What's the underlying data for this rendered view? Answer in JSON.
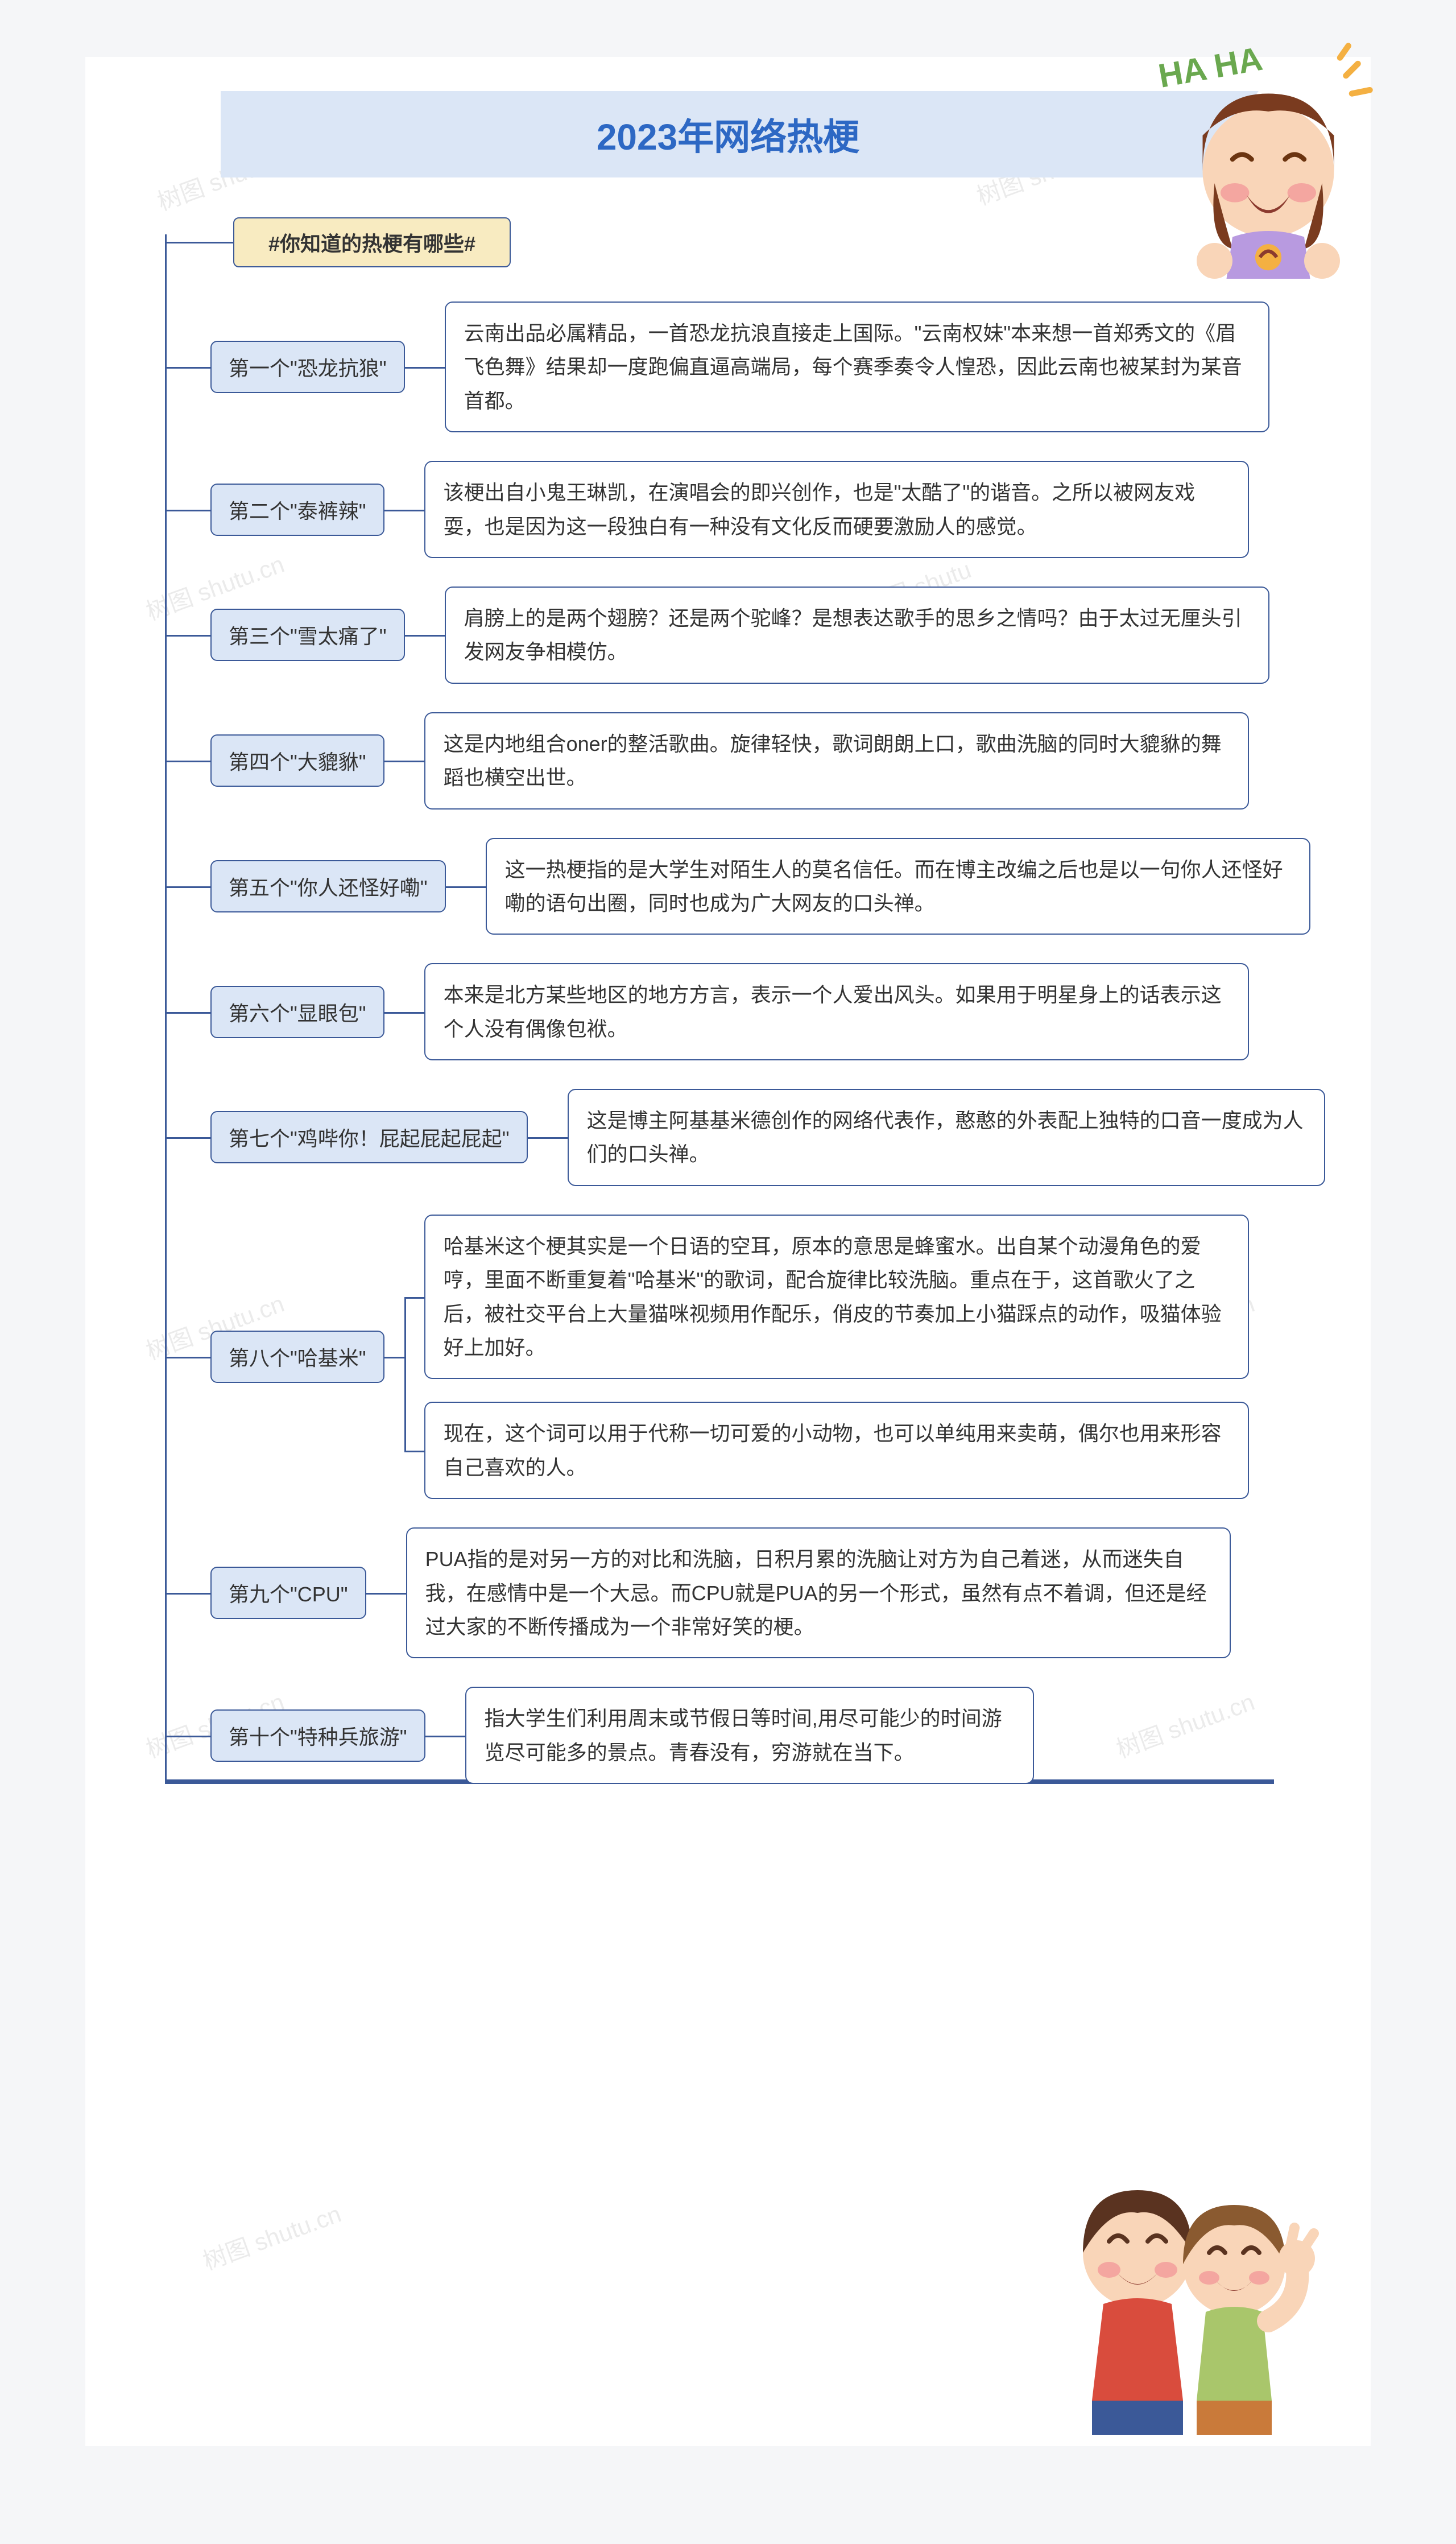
{
  "title": "2023年网络热梗",
  "subtitle": "#你知道的热梗有哪些#",
  "watermarks": [
    "树图 shutu.cn",
    "树图 shutu",
    "树图 shutu.cn",
    "树图 shutu",
    "树图 shutu.cn",
    "树图 shutu.cn",
    "树图 shutu.cn",
    "树图 shutu.cn",
    "树图 shutu.cn",
    "树图 shutu.cn"
  ],
  "colors": {
    "title_bg": "#dbe6f6",
    "title_text": "#2d68c4",
    "subtitle_bg": "#f8ebc1",
    "border": "#3b5998",
    "label_bg": "#dbe6f6",
    "desc_bg": "#ffffff",
    "page_bg": "#f5f6f8",
    "canvas_bg": "#ffffff",
    "watermark": "#d8d8d8"
  },
  "typography": {
    "title_fontsize": 64,
    "subtitle_fontsize": 36,
    "label_fontsize": 36,
    "desc_fontsize": 36,
    "desc_lineheight": 1.65
  },
  "items": [
    {
      "label": "第一个\"恐龙抗狼\"",
      "desc": [
        "云南出品必属精品，一首恐龙抗浪直接走上国际。\"云南权妹\"本来想一首郑秀文的《眉飞色舞》结果却一度跑偏直逼高端局，每个赛季奏令人惶恐，因此云南也被某封为某音首都。"
      ]
    },
    {
      "label": "第二个\"泰裤辣\"",
      "desc": [
        "该梗出自小鬼王琳凯，在演唱会的即兴创作，也是\"太酷了\"的谐音。之所以被网友戏耍，也是因为这一段独白有一种没有文化反而硬要激励人的感觉。"
      ]
    },
    {
      "label": "第三个\"雪太痛了\"",
      "desc": [
        "肩膀上的是两个翅膀？还是两个驼峰？是想表达歌手的思乡之情吗？由于太过无厘头引发网友争相模仿。"
      ]
    },
    {
      "label": "第四个\"大貔貅\"",
      "desc": [
        "这是内地组合oner的整活歌曲。旋律轻快，歌词朗朗上口，歌曲洗脑的同时大貔貅的舞蹈也横空出世。"
      ]
    },
    {
      "label": "第五个\"你人还怪好嘞\"",
      "desc": [
        "这一热梗指的是大学生对陌生人的莫名信任。而在博主改编之后也是以一句你人还怪好嘞的语句出圈，同时也成为广大网友的口头禅。"
      ]
    },
    {
      "label": "第六个\"显眼包\"",
      "desc": [
        "本来是北方某些地区的地方方言，表示一个人爱出风头。如果用于明星身上的话表示这个人没有偶像包袱。"
      ]
    },
    {
      "label": "第七个\"鸡哔你！屁起屁起屁起\"",
      "desc": [
        "这是博主阿基基米德创作的网络代表作，憨憨的外表配上独特的口音一度成为人们的口头禅。"
      ]
    },
    {
      "label": "第八个\"哈基米\"",
      "desc": [
        "哈基米这个梗其实是一个日语的空耳，原本的意思是蜂蜜水。出自某个动漫角色的爱哼，里面不断重复着\"哈基米\"的歌词，配合旋律比较洗脑。重点在于，这首歌火了之后，被社交平台上大量猫咪视频用作配乐，俏皮的节奏加上小猫踩点的动作，吸猫体验好上加好。",
        "现在，这个词可以用于代称一切可爱的小动物，也可以单纯用来卖萌，偶尔也用来形容自己喜欢的人。"
      ]
    },
    {
      "label": "第九个\"CPU\"",
      "desc": [
        "PUA指的是对另一方的对比和洗脑，日积月累的洗脑让对方为自己着迷，从而迷失自我，在感情中是一个大忌。而CPU就是PUA的另一个形式，虽然有点不着调，但还是经过大家的不断传播成为一个非常好笑的梗。"
      ]
    },
    {
      "label": "第十个\"特种兵旅游\"",
      "desc": [
        "指大学生们利用周末或节假日等时间,用尽可能少的时间游览尽可能多的景点。青春没有，穷游就在当下。"
      ],
      "short": true
    }
  ]
}
